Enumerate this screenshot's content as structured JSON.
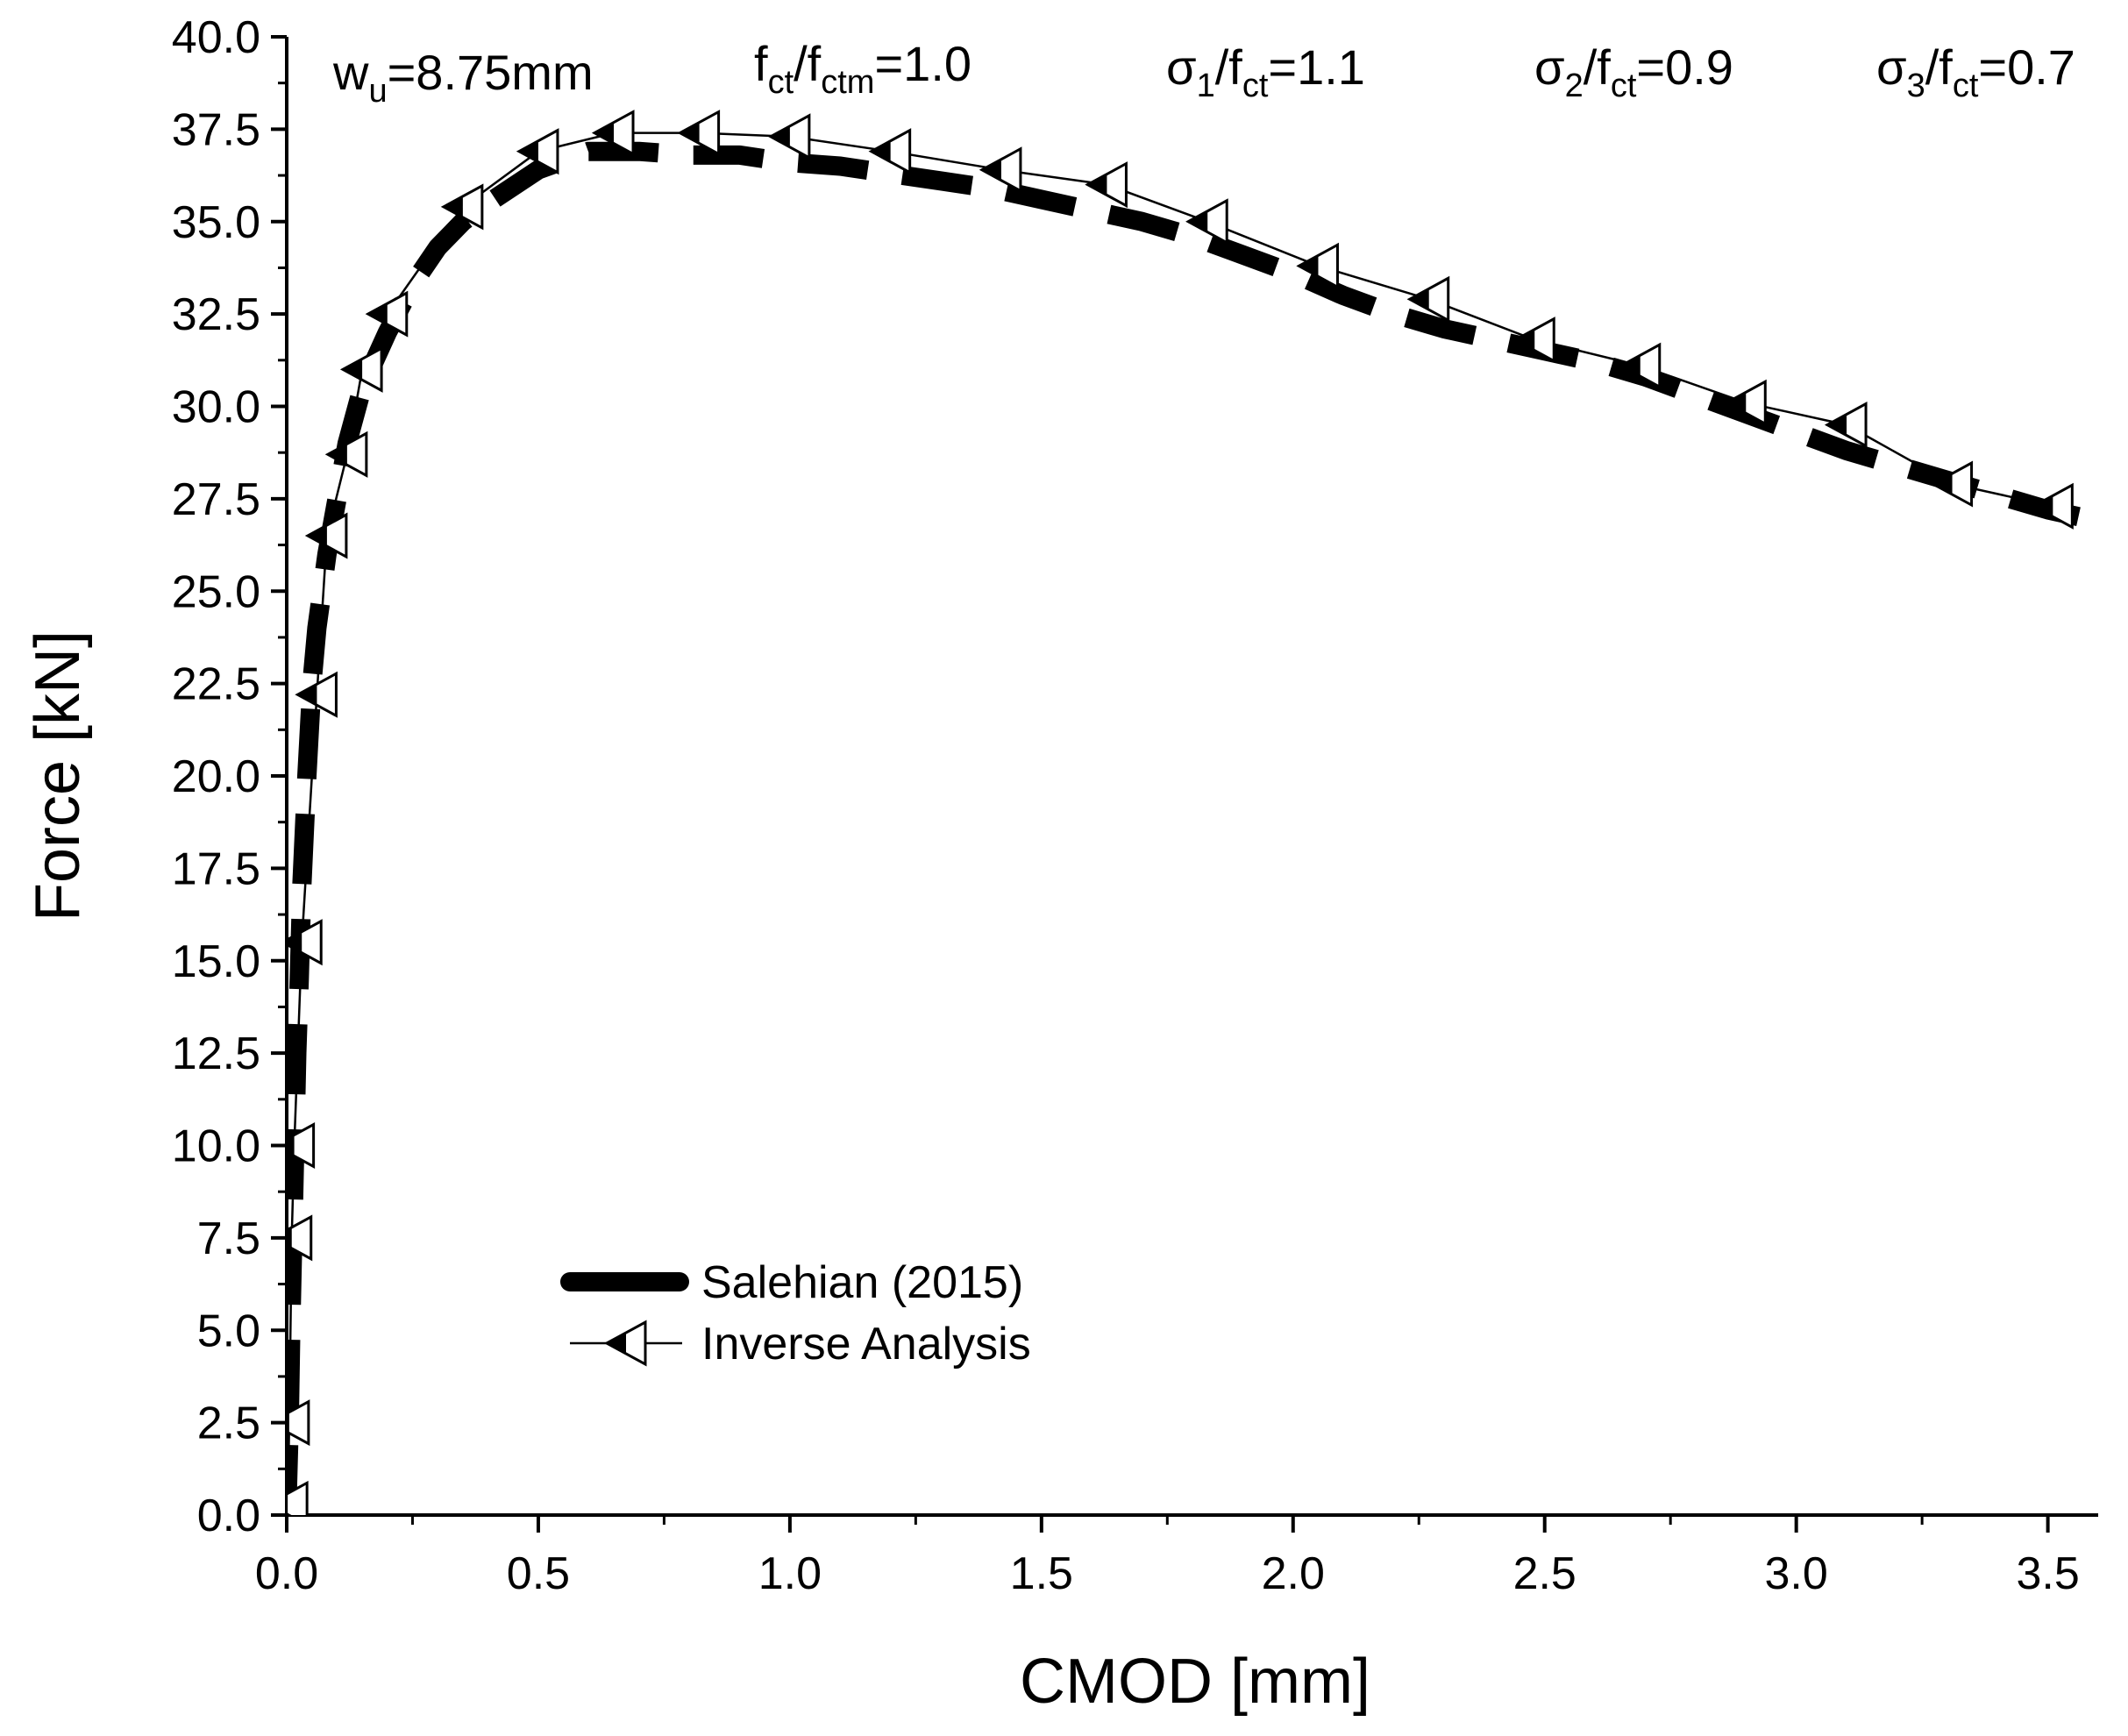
{
  "chart_data": {
    "type": "line",
    "title": "",
    "xlabel": "CMOD [mm]",
    "ylabel": "Force [kN]",
    "xlim": [
      0,
      3.6
    ],
    "ylim": [
      0,
      40
    ],
    "xticks": [
      "0.0",
      "0.5",
      "1.0",
      "1.5",
      "2.0",
      "2.5",
      "3.0",
      "3.5"
    ],
    "yticks": [
      "0.0",
      "2.5",
      "5.0",
      "7.5",
      "10.0",
      "12.5",
      "15.0",
      "17.5",
      "20.0",
      "22.5",
      "25.0",
      "27.5",
      "30.0",
      "32.5",
      "35.0",
      "37.5",
      "40.0"
    ],
    "grid": false,
    "legend_position": "lower-center",
    "annotations": [
      {
        "base": "w",
        "sub": "u",
        "rest": "=8.75mm"
      },
      {
        "pre": "f",
        "sub": "ct",
        "mid": "/f",
        "sub2": "ctm",
        "rest": "=1.0"
      },
      {
        "pre": "σ",
        "sub": "1",
        "mid": "/f",
        "sub2": "ct",
        "rest": "=1.1"
      },
      {
        "pre": "σ",
        "sub": "2",
        "mid": "/f",
        "sub2": "ct",
        "rest": "=0.9"
      },
      {
        "pre": "σ",
        "sub": "3",
        "mid": "/f",
        "sub2": "ct",
        "rest": "=0.7"
      }
    ],
    "series": [
      {
        "name": "Salehian (2015)",
        "style": "thick-dashed",
        "color": "#000000",
        "x": [
          0.0,
          0.005,
          0.008,
          0.012,
          0.016,
          0.02,
          0.025,
          0.03,
          0.04,
          0.05,
          0.06,
          0.08,
          0.1,
          0.12,
          0.15,
          0.2,
          0.25,
          0.3,
          0.35,
          0.4,
          0.5,
          0.6,
          0.7,
          0.8,
          0.9,
          1.0,
          1.1,
          1.2,
          1.3,
          1.4,
          1.5,
          1.6,
          1.7,
          1.8,
          1.9,
          2.0,
          2.1,
          2.2,
          2.3,
          2.4,
          2.5,
          2.6,
          2.7,
          2.8,
          2.9,
          3.0,
          3.1,
          3.2,
          3.3,
          3.4,
          3.5,
          3.6
        ],
        "y": [
          0.0,
          2.5,
          5.0,
          7.5,
          10.0,
          12.5,
          14.5,
          17.0,
          20.0,
          22.5,
          24.0,
          26.0,
          27.5,
          29.0,
          30.5,
          32.0,
          33.3,
          34.3,
          35.0,
          35.5,
          36.4,
          36.9,
          36.9,
          36.8,
          36.8,
          36.6,
          36.5,
          36.3,
          36.1,
          35.9,
          35.6,
          35.3,
          35.0,
          34.6,
          34.1,
          33.6,
          33.0,
          32.5,
          32.1,
          31.8,
          31.5,
          31.2,
          30.8,
          30.3,
          29.8,
          29.3,
          28.8,
          28.4,
          28.0,
          27.6,
          27.2,
          26.9
        ]
      },
      {
        "name": "Inverse Analysis",
        "style": "line-with-left-triangle-markers",
        "color": "#000000",
        "x": [
          0.002,
          0.005,
          0.01,
          0.015,
          0.03,
          0.06,
          0.08,
          0.12,
          0.15,
          0.2,
          0.35,
          0.5,
          0.65,
          0.82,
          1.0,
          1.2,
          1.42,
          1.63,
          1.83,
          2.05,
          2.27,
          2.48,
          2.69,
          2.9,
          3.1,
          3.31,
          3.51
        ],
        "y": [
          0.3,
          2.5,
          7.5,
          10.0,
          15.5,
          22.2,
          26.5,
          28.7,
          31.0,
          32.5,
          35.4,
          36.9,
          37.4,
          37.4,
          37.3,
          36.9,
          36.4,
          36.0,
          35.0,
          33.8,
          32.9,
          31.8,
          31.1,
          30.1,
          29.5,
          27.9,
          27.3
        ]
      }
    ]
  }
}
